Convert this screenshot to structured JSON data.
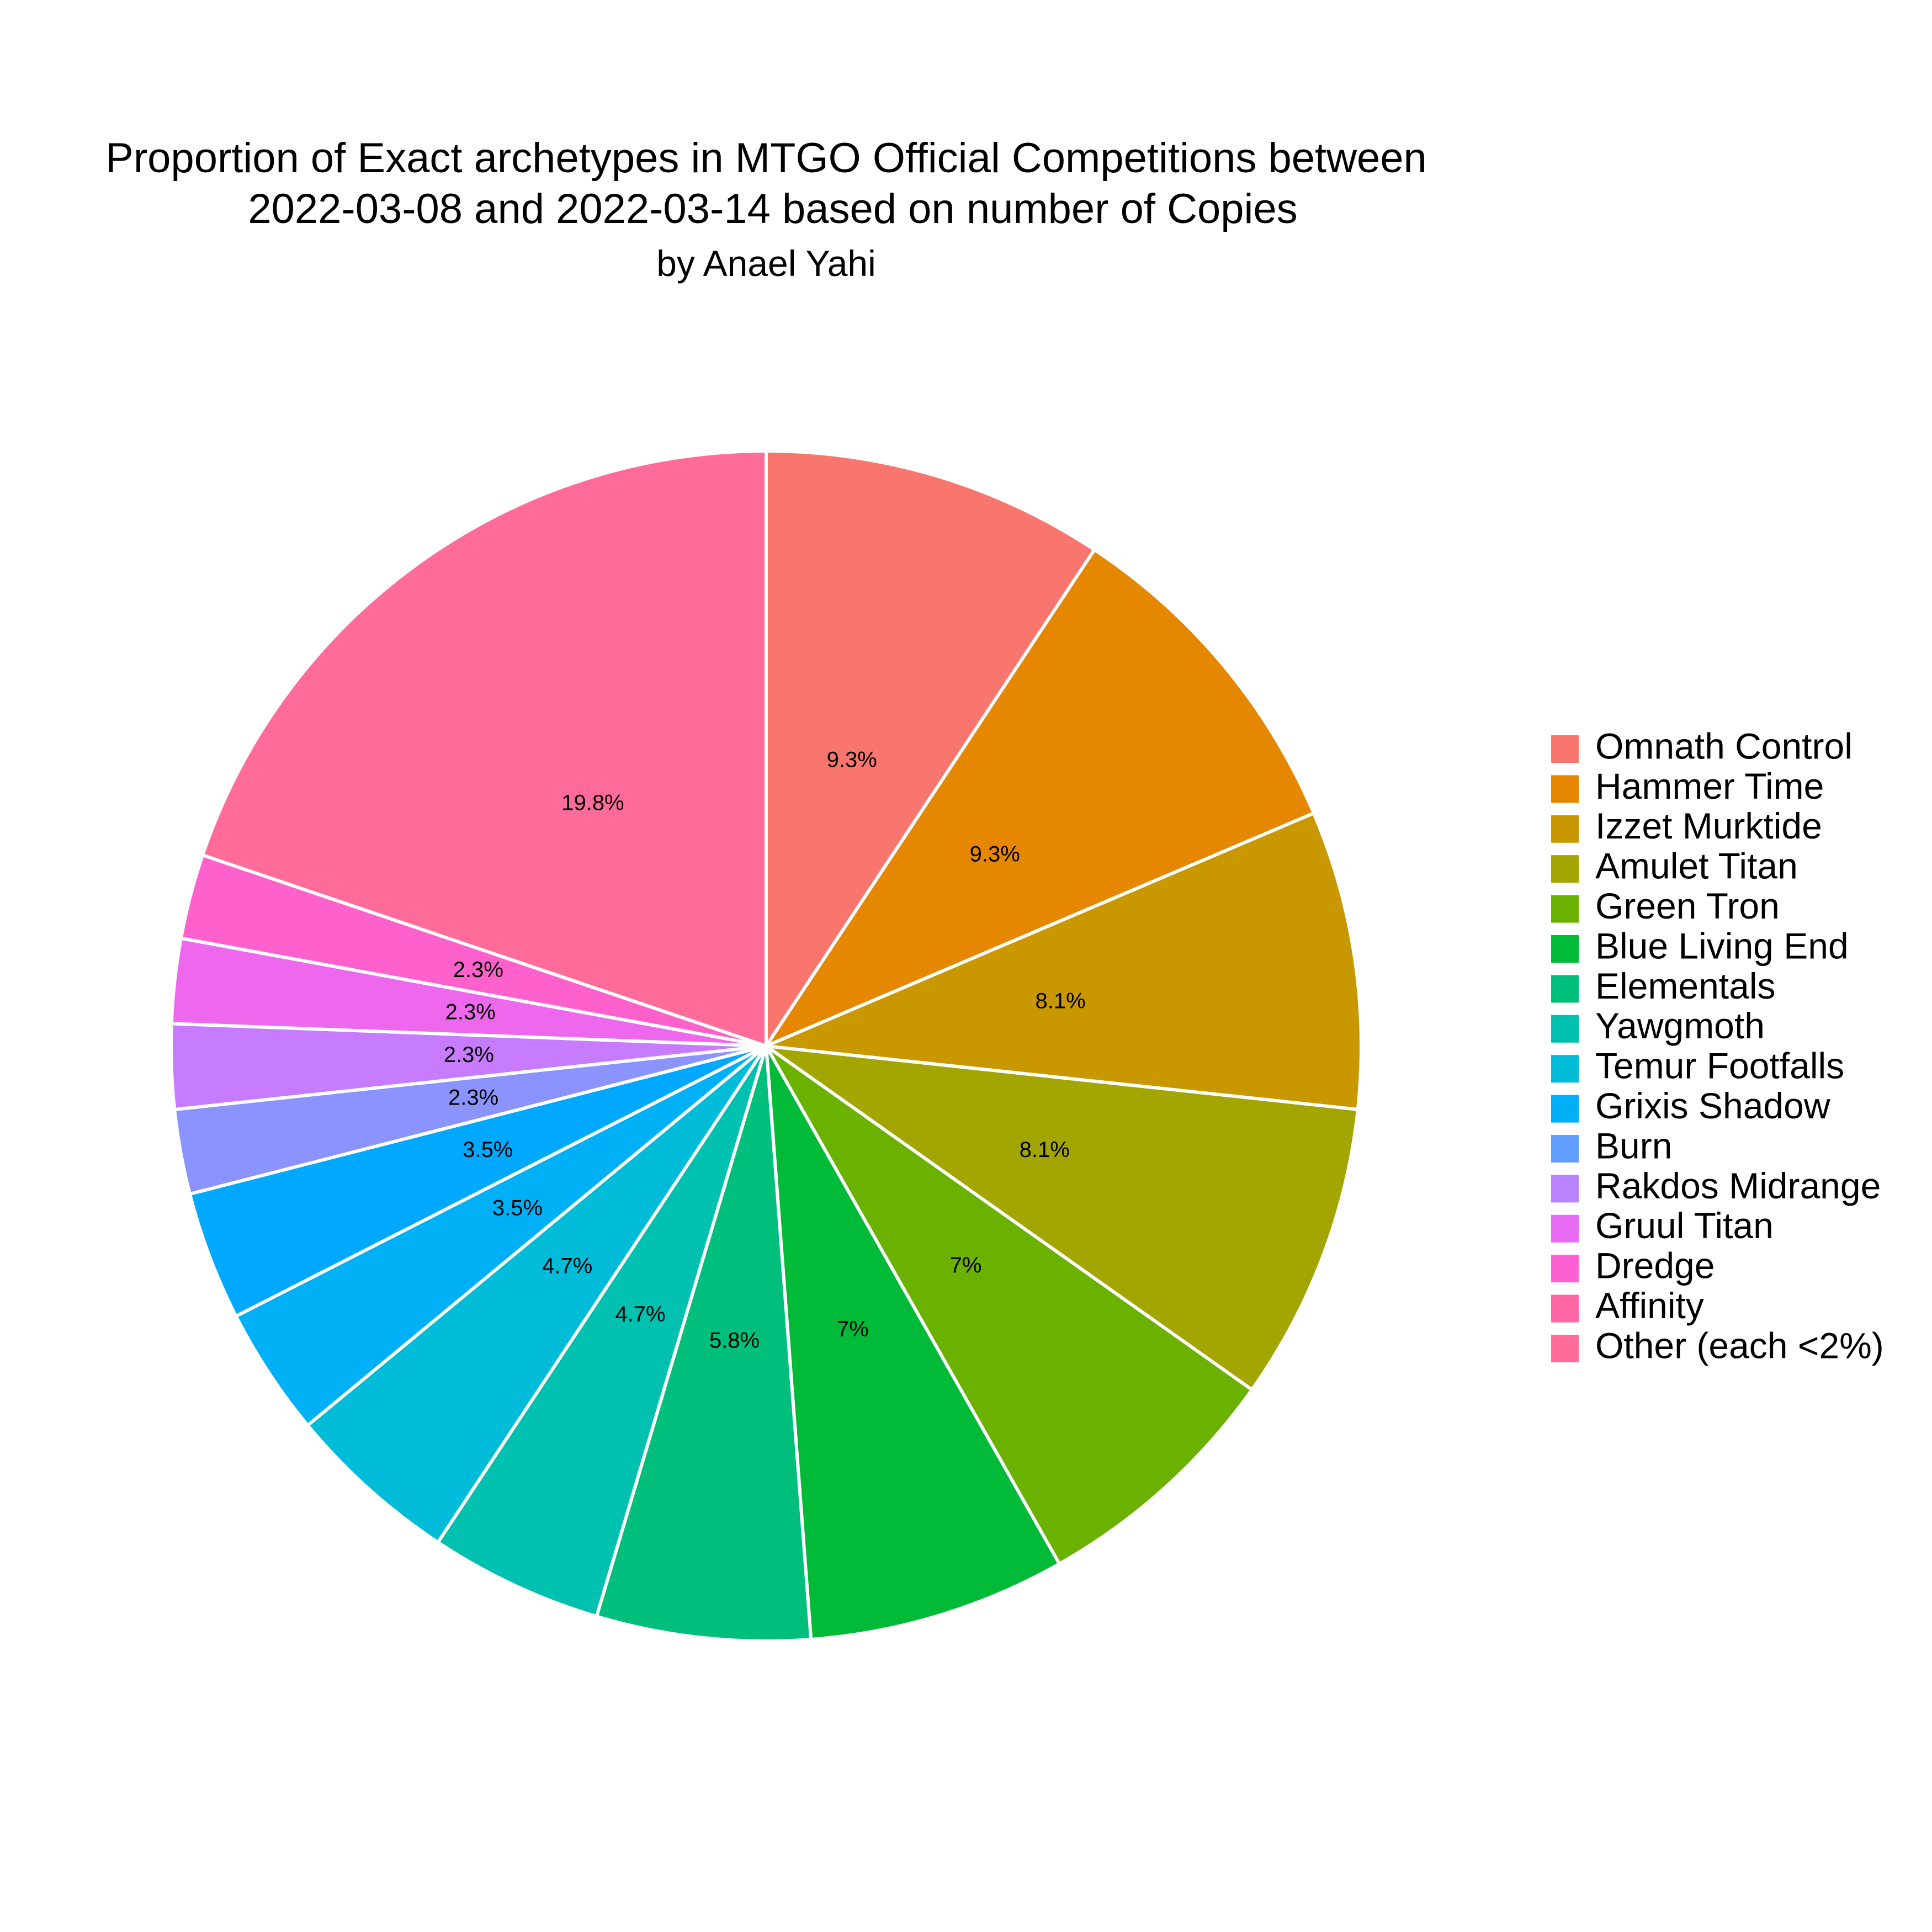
{
  "chart_data": {
    "type": "pie",
    "title_lines": [
      "Proportion of Exact archetypes in MTGO Official Competitions between",
      "2022-03-08 and 2022-03-14 based on number of Copies"
    ],
    "subtitle": "by Anael Yahi",
    "slices": [
      {
        "name": "Omnath Control",
        "value": 9.3,
        "label": "9.3%",
        "color": "#F8766D"
      },
      {
        "name": "Hammer Time",
        "value": 9.3,
        "label": "9.3%",
        "color": "#E58700"
      },
      {
        "name": "Izzet Murktide",
        "value": 8.1,
        "label": "8.1%",
        "color": "#C99800"
      },
      {
        "name": "Amulet Titan",
        "value": 8.1,
        "label": "8.1%",
        "color": "#A3A500"
      },
      {
        "name": "Green Tron",
        "value": 7.0,
        "label": "7%",
        "color": "#6BB100"
      },
      {
        "name": "Blue Living End",
        "value": 7.0,
        "label": "7%",
        "color": "#00BA38"
      },
      {
        "name": "Elementals",
        "value": 5.8,
        "label": "5.8%",
        "color": "#00BF7D"
      },
      {
        "name": "Yawgmoth",
        "value": 4.7,
        "label": "4.7%",
        "color": "#00C0AF"
      },
      {
        "name": "Temur Footfalls",
        "value": 4.7,
        "label": "4.7%",
        "color": "#00BCD8"
      },
      {
        "name": "Grixis Shadow",
        "value": 3.5,
        "label": "3.5%",
        "color": "#00B0F6"
      },
      {
        "name": "Burn",
        "value": 3.5,
        "label": "3.5%",
        "color": "#619CFF"
      },
      {
        "name": "Rakdos Midrange",
        "value": 2.3,
        "label": "2.3%",
        "color": "#B983FF"
      },
      {
        "name": "Gruul Titan",
        "value": 2.3,
        "label": "2.3%",
        "color": "#E76BF3"
      },
      {
        "name": "Dredge",
        "value": 2.3,
        "label": "2.3%",
        "color": "#FD61D1"
      },
      {
        "name": "Affinity",
        "value": 2.3,
        "label": "2.3%",
        "color": "#FF67A4"
      },
      {
        "name": "Other (each <2%)",
        "value": 19.8,
        "label": "19.8%",
        "color": "#FF6C9A"
      }
    ],
    "slice_colors_in_draw_order": [
      "#F8766D",
      "#E58700",
      "#C99800",
      "#A3A500",
      "#6BB100",
      "#00BA38",
      "#00BF7D",
      "#00C0AF",
      "#00BCD8",
      "#00B0F6",
      "#00A9FF",
      "#8B93FF",
      "#C77CFF",
      "#ED68ED",
      "#FF61CC",
      "#FF6C9A"
    ],
    "legend_position": "right",
    "direction": "clockwise",
    "start": "top"
  }
}
